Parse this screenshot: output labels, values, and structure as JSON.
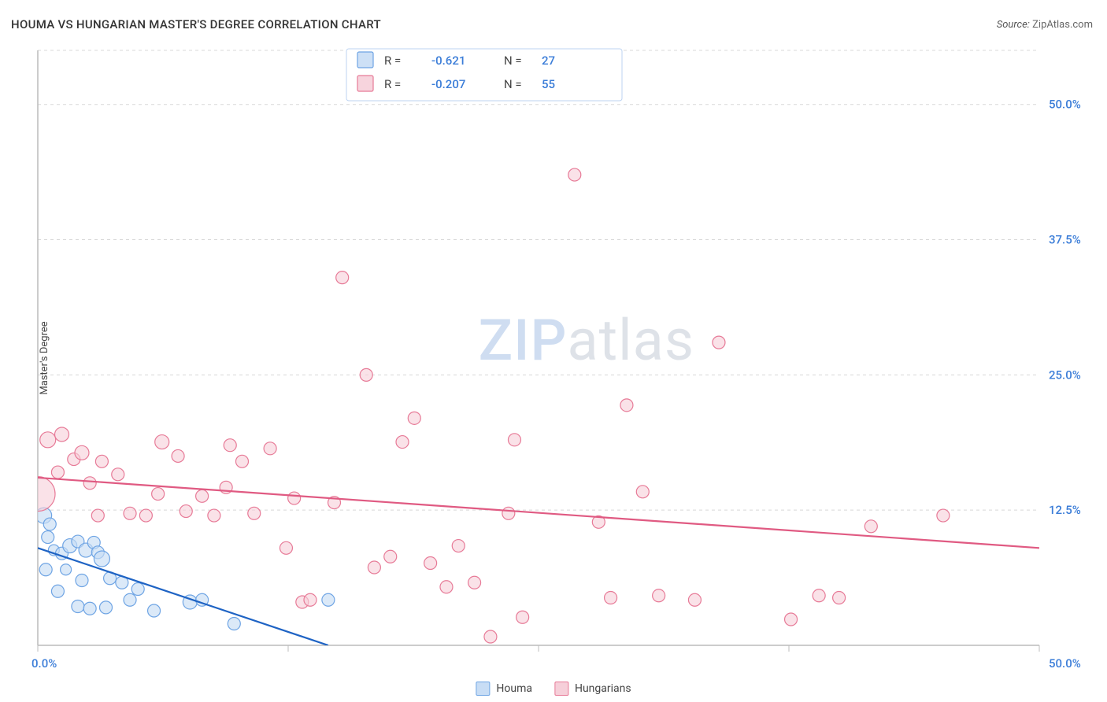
{
  "title": "HOUMA VS HUNGARIAN MASTER'S DEGREE CORRELATION CHART",
  "source_prefix": "Source:",
  "source": "ZipAtlas.com",
  "ylabel": "Master's Degree",
  "watermark": {
    "part1": "ZIP",
    "part2": "atlas"
  },
  "chart": {
    "type": "scatter",
    "xlim": [
      0,
      50
    ],
    "ylim": [
      0,
      55
    ],
    "x_ticks": [
      0,
      12.5,
      25,
      37.5,
      50
    ],
    "y_grid": [
      12.5,
      25.0,
      37.5,
      50.0,
      55.0
    ],
    "y_tick_labels": [
      "12.5%",
      "25.0%",
      "37.5%",
      "50.0%"
    ],
    "x_min_label": "0.0%",
    "x_max_label": "50.0%",
    "background_color": "#ffffff",
    "grid_color": "#d8d8d8",
    "axis_color": "#bcbcbc",
    "label_color": "#3b7dd8",
    "series": [
      {
        "name": "Houma",
        "marker_fill": "#c8ddf5",
        "marker_stroke": "#6ea4e4",
        "marker_fill_opacity": 0.65,
        "trend_color": "#1e63c4",
        "R": "-0.621",
        "N": "27",
        "trend": {
          "x1": 0,
          "y1": 9.0,
          "x2": 14.5,
          "y2": 0
        },
        "points": [
          {
            "x": 0.3,
            "y": 12.0,
            "r": 10
          },
          {
            "x": 0.6,
            "y": 11.2,
            "r": 8
          },
          {
            "x": 0.5,
            "y": 10.0,
            "r": 8
          },
          {
            "x": 0.8,
            "y": 8.8,
            "r": 7
          },
          {
            "x": 0.4,
            "y": 7.0,
            "r": 8
          },
          {
            "x": 1.2,
            "y": 8.5,
            "r": 8
          },
          {
            "x": 1.6,
            "y": 9.2,
            "r": 9
          },
          {
            "x": 2.0,
            "y": 9.6,
            "r": 8
          },
          {
            "x": 1.4,
            "y": 7.0,
            "r": 7
          },
          {
            "x": 2.4,
            "y": 8.8,
            "r": 9
          },
          {
            "x": 2.8,
            "y": 9.5,
            "r": 8
          },
          {
            "x": 3.0,
            "y": 8.6,
            "r": 8
          },
          {
            "x": 2.2,
            "y": 6.0,
            "r": 8
          },
          {
            "x": 3.2,
            "y": 8.0,
            "r": 10
          },
          {
            "x": 3.6,
            "y": 6.2,
            "r": 8
          },
          {
            "x": 1.0,
            "y": 5.0,
            "r": 8
          },
          {
            "x": 2.0,
            "y": 3.6,
            "r": 8
          },
          {
            "x": 2.6,
            "y": 3.4,
            "r": 8
          },
          {
            "x": 3.4,
            "y": 3.5,
            "r": 8
          },
          {
            "x": 4.2,
            "y": 5.8,
            "r": 8
          },
          {
            "x": 5.0,
            "y": 5.2,
            "r": 8
          },
          {
            "x": 5.8,
            "y": 3.2,
            "r": 8
          },
          {
            "x": 7.6,
            "y": 4.0,
            "r": 9
          },
          {
            "x": 8.2,
            "y": 4.2,
            "r": 8
          },
          {
            "x": 9.8,
            "y": 2.0,
            "r": 8
          },
          {
            "x": 4.6,
            "y": 4.2,
            "r": 8
          },
          {
            "x": 14.5,
            "y": 4.2,
            "r": 8
          }
        ]
      },
      {
        "name": "Hungarians",
        "marker_fill": "#f6cfd9",
        "marker_stroke": "#e77a97",
        "marker_fill_opacity": 0.6,
        "trend_color": "#e05a82",
        "R": "-0.207",
        "N": "55",
        "trend": {
          "x1": 0,
          "y1": 15.5,
          "x2": 50,
          "y2": 9.0
        },
        "points": [
          {
            "x": 0.0,
            "y": 14.0,
            "r": 22
          },
          {
            "x": 0.5,
            "y": 19.0,
            "r": 10
          },
          {
            "x": 1.2,
            "y": 19.5,
            "r": 9
          },
          {
            "x": 1.0,
            "y": 16.0,
            "r": 8
          },
          {
            "x": 1.8,
            "y": 17.2,
            "r": 8
          },
          {
            "x": 2.2,
            "y": 17.8,
            "r": 9
          },
          {
            "x": 2.6,
            "y": 15.0,
            "r": 8
          },
          {
            "x": 3.2,
            "y": 17.0,
            "r": 8
          },
          {
            "x": 3.0,
            "y": 12.0,
            "r": 8
          },
          {
            "x": 4.0,
            "y": 15.8,
            "r": 8
          },
          {
            "x": 4.6,
            "y": 12.2,
            "r": 8
          },
          {
            "x": 5.4,
            "y": 12.0,
            "r": 8
          },
          {
            "x": 6.2,
            "y": 18.8,
            "r": 9
          },
          {
            "x": 6.0,
            "y": 14.0,
            "r": 8
          },
          {
            "x": 7.0,
            "y": 17.5,
            "r": 8
          },
          {
            "x": 7.4,
            "y": 12.4,
            "r": 8
          },
          {
            "x": 8.2,
            "y": 13.8,
            "r": 8
          },
          {
            "x": 8.8,
            "y": 12.0,
            "r": 8
          },
          {
            "x": 9.6,
            "y": 18.5,
            "r": 8
          },
          {
            "x": 9.4,
            "y": 14.6,
            "r": 8
          },
          {
            "x": 10.2,
            "y": 17.0,
            "r": 8
          },
          {
            "x": 10.8,
            "y": 12.2,
            "r": 8
          },
          {
            "x": 11.6,
            "y": 18.2,
            "r": 8
          },
          {
            "x": 12.8,
            "y": 13.6,
            "r": 8
          },
          {
            "x": 12.4,
            "y": 9.0,
            "r": 8
          },
          {
            "x": 13.2,
            "y": 4.0,
            "r": 8
          },
          {
            "x": 13.6,
            "y": 4.2,
            "r": 8
          },
          {
            "x": 14.8,
            "y": 13.2,
            "r": 8
          },
          {
            "x": 15.2,
            "y": 34.0,
            "r": 8
          },
          {
            "x": 16.4,
            "y": 25.0,
            "r": 8
          },
          {
            "x": 16.8,
            "y": 7.2,
            "r": 8
          },
          {
            "x": 17.6,
            "y": 8.2,
            "r": 8
          },
          {
            "x": 18.2,
            "y": 18.8,
            "r": 8
          },
          {
            "x": 18.8,
            "y": 21.0,
            "r": 8
          },
          {
            "x": 19.6,
            "y": 7.6,
            "r": 8
          },
          {
            "x": 20.4,
            "y": 5.4,
            "r": 8
          },
          {
            "x": 21.0,
            "y": 9.2,
            "r": 8
          },
          {
            "x": 21.8,
            "y": 5.8,
            "r": 8
          },
          {
            "x": 22.6,
            "y": 0.8,
            "r": 8
          },
          {
            "x": 23.8,
            "y": 19.0,
            "r": 8
          },
          {
            "x": 23.5,
            "y": 12.2,
            "r": 8
          },
          {
            "x": 24.2,
            "y": 2.6,
            "r": 8
          },
          {
            "x": 26.8,
            "y": 43.5,
            "r": 8
          },
          {
            "x": 28.0,
            "y": 11.4,
            "r": 8
          },
          {
            "x": 28.6,
            "y": 4.4,
            "r": 8
          },
          {
            "x": 29.4,
            "y": 22.2,
            "r": 8
          },
          {
            "x": 30.2,
            "y": 14.2,
            "r": 8
          },
          {
            "x": 31.0,
            "y": 4.6,
            "r": 8
          },
          {
            "x": 32.8,
            "y": 4.2,
            "r": 8
          },
          {
            "x": 34.0,
            "y": 28.0,
            "r": 8
          },
          {
            "x": 37.6,
            "y": 2.4,
            "r": 8
          },
          {
            "x": 39.0,
            "y": 4.6,
            "r": 8
          },
          {
            "x": 40.0,
            "y": 4.4,
            "r": 8
          },
          {
            "x": 41.6,
            "y": 11.0,
            "r": 8
          },
          {
            "x": 45.2,
            "y": 12.0,
            "r": 8
          }
        ]
      }
    ]
  },
  "legend_top": {
    "R_label": "R =",
    "N_label": "N ="
  },
  "bottom_legend": [
    {
      "label": "Houma",
      "fill": "#c8ddf5",
      "stroke": "#6ea4e4"
    },
    {
      "label": "Hungarians",
      "fill": "#f6cfd9",
      "stroke": "#e77a97"
    }
  ]
}
